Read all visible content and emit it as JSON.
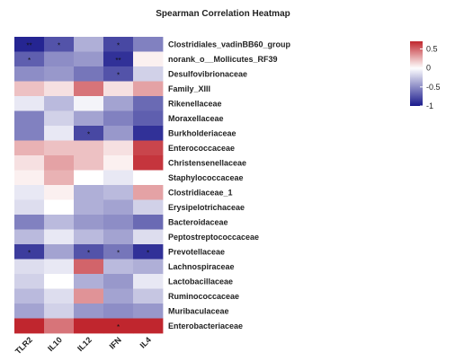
{
  "chart_data": {
    "type": "heatmap",
    "title": "Spearman Correlation Heatmap",
    "columns": [
      "TLR2",
      "IL10",
      "IL12",
      "IFN",
      "IL4"
    ],
    "rows": [
      "Clostridiales_vadinBB60_group",
      "norank_o__Mollicutes_RF39",
      "Desulfovibrionaceae",
      "Family_XIII",
      "Rikenellaceae",
      "Moraxellaceae",
      "Burkholderiaceae",
      "Enterococcaceae",
      "Christensenellaceae",
      "Staphylococcaceae",
      "Clostridiaceae_1",
      "Erysipelotrichaceae",
      "Bacteroidaceae",
      "Peptostreptococcaceae",
      "Prevotellaceae",
      "Lachnospiraceae",
      "Lactobacillaceae",
      "Ruminococcaceae",
      "Muribaculaceae",
      "Enterobacteriaceae"
    ],
    "values": [
      [
        -0.95,
        -0.75,
        -0.35,
        -0.8,
        -0.55
      ],
      [
        -0.7,
        -0.5,
        -0.45,
        -0.9,
        0.05
      ],
      [
        -0.5,
        -0.45,
        -0.6,
        -0.75,
        -0.2
      ],
      [
        0.2,
        0.1,
        0.45,
        0.1,
        0.3
      ],
      [
        -0.1,
        -0.3,
        -0.05,
        -0.4,
        -0.65
      ],
      [
        -0.55,
        -0.2,
        -0.4,
        -0.55,
        -0.7
      ],
      [
        -0.55,
        -0.1,
        -0.8,
        -0.45,
        -0.9
      ],
      [
        0.25,
        0.2,
        0.2,
        0.1,
        0.6
      ],
      [
        0.1,
        0.3,
        0.2,
        0.05,
        0.65
      ],
      [
        0.05,
        0.25,
        0.0,
        -0.1,
        0.0
      ],
      [
        -0.1,
        0.05,
        -0.35,
        -0.3,
        0.3
      ],
      [
        -0.15,
        0.0,
        -0.35,
        -0.4,
        -0.2
      ],
      [
        -0.55,
        -0.3,
        -0.45,
        -0.5,
        -0.65
      ],
      [
        -0.3,
        -0.1,
        -0.3,
        -0.4,
        -0.15
      ],
      [
        -0.85,
        -0.4,
        -0.75,
        -0.6,
        -0.9
      ],
      [
        -0.15,
        -0.1,
        0.5,
        -0.3,
        -0.35
      ],
      [
        -0.2,
        0.0,
        -0.35,
        -0.45,
        -0.1
      ],
      [
        -0.3,
        -0.15,
        0.35,
        -0.4,
        -0.25
      ],
      [
        -0.4,
        -0.2,
        -0.45,
        -0.5,
        -0.45
      ],
      [
        0.85,
        0.45,
        0.75,
        0.9,
        0.75
      ]
    ],
    "significance": [
      [
        "**",
        "*",
        "",
        "*",
        ""
      ],
      [
        "*",
        "",
        "",
        "**",
        ""
      ],
      [
        "",
        "",
        "",
        "*",
        ""
      ],
      [
        "",
        "",
        "",
        "",
        ""
      ],
      [
        "",
        "",
        "",
        "",
        ""
      ],
      [
        "",
        "",
        "",
        "",
        ""
      ],
      [
        "",
        "",
        "*",
        "",
        ""
      ],
      [
        "",
        "",
        "",
        "",
        ""
      ],
      [
        "",
        "",
        "",
        "",
        ""
      ],
      [
        "",
        "",
        "",
        "",
        ""
      ],
      [
        "",
        "",
        "",
        "",
        ""
      ],
      [
        "",
        "",
        "",
        "",
        ""
      ],
      [
        "",
        "",
        "",
        "",
        ""
      ],
      [
        "",
        "",
        "",
        "",
        ""
      ],
      [
        "*",
        "",
        "*",
        "*",
        "*"
      ],
      [
        "",
        "",
        "",
        "",
        ""
      ],
      [
        "",
        "",
        "",
        "",
        ""
      ],
      [
        "",
        "",
        "",
        "",
        ""
      ],
      [
        "",
        "",
        "",
        "",
        ""
      ],
      [
        "",
        "",
        "",
        "*",
        ""
      ]
    ],
    "color_scale": {
      "min": -1,
      "max": 0.7,
      "low_color": "#1a1a8c",
      "mid_color": "#ffffff",
      "high_color": "#c0262e"
    },
    "legend": {
      "position": "top-right",
      "ticks": [
        0.5,
        0,
        -0.5,
        -1
      ],
      "tick_labels": [
        "0.5",
        "0",
        "-0.5",
        "-1"
      ]
    }
  }
}
